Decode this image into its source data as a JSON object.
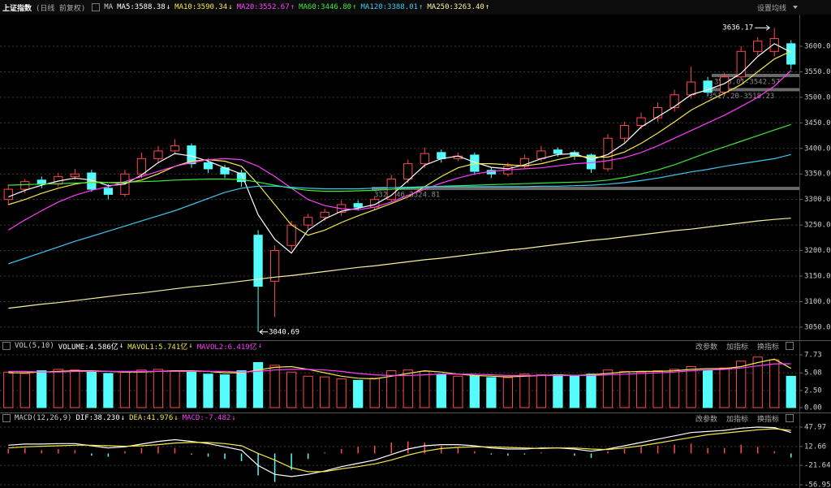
{
  "header": {
    "title": "上证指数",
    "period": "(日线 前复权)",
    "ma_title": "MA",
    "settings": "设置均线"
  },
  "chart_data": [
    {
      "type": "candlestick",
      "open": [
        3300,
        3320,
        3338,
        3330,
        3345,
        3352,
        3322,
        3310,
        3350,
        3380,
        3395,
        3405,
        3372,
        3362,
        3352,
        3230,
        3140,
        3210,
        3250,
        3265,
        3275,
        3292,
        3285,
        3300,
        3340,
        3370,
        3392,
        3380,
        3387,
        3357,
        3350,
        3365,
        3380,
        3397,
        3392,
        3387,
        3360,
        3420,
        3445,
        3460,
        3480,
        3505,
        3532,
        3510,
        3540,
        3590,
        3590,
        3605
      ],
      "high": [
        3330,
        3340,
        3345,
        3352,
        3360,
        3358,
        3330,
        3358,
        3392,
        3405,
        3418,
        3410,
        3380,
        3368,
        3358,
        3240,
        3210,
        3258,
        3272,
        3282,
        3298,
        3298,
        3306,
        3348,
        3378,
        3402,
        3398,
        3392,
        3392,
        3362,
        3372,
        3388,
        3405,
        3402,
        3396,
        3390,
        3428,
        3452,
        3470,
        3490,
        3515,
        3560,
        3540,
        3548,
        3600,
        3618,
        3636.17,
        3612
      ],
      "low": [
        3290,
        3312,
        3322,
        3325,
        3338,
        3315,
        3300,
        3305,
        3342,
        3372,
        3388,
        3362,
        3352,
        3342,
        3325,
        3040.69,
        3070,
        3200,
        3242,
        3258,
        3268,
        3278,
        3280,
        3296,
        3332,
        3362,
        3372,
        3375,
        3348,
        3342,
        3345,
        3360,
        3374,
        3384,
        3378,
        3352,
        3355,
        3412,
        3438,
        3452,
        3472,
        3498,
        3502,
        3505,
        3532,
        3582,
        3580,
        3555
      ],
      "close": [
        3320,
        3335,
        3330,
        3345,
        3350,
        3320,
        3310,
        3350,
        3380,
        3395,
        3405,
        3370,
        3360,
        3350,
        3335,
        3130,
        3200,
        3250,
        3265,
        3275,
        3290,
        3285,
        3300,
        3340,
        3370,
        3390,
        3380,
        3385,
        3355,
        3350,
        3365,
        3380,
        3395,
        3390,
        3385,
        3360,
        3420,
        3445,
        3460,
        3480,
        3505,
        3530,
        3510,
        3540,
        3590,
        3610,
        3615,
        3565
      ],
      "up_color": "#ff4a4a",
      "down_color": "#54fcfc",
      "moving_averages": [
        {
          "label": "MA5:3588.38",
          "arrow": "↓",
          "color": "#ffffff",
          "values": [
            3305,
            3318,
            3328,
            3336,
            3342,
            3338,
            3327,
            3330,
            3348,
            3372,
            3390,
            3385,
            3375,
            3362,
            3350,
            3270,
            3222,
            3195,
            3240,
            3262,
            3277,
            3283,
            3290,
            3308,
            3337,
            3367,
            3380,
            3385,
            3373,
            3363,
            3360,
            3368,
            3380,
            3388,
            3390,
            3378,
            3388,
            3410,
            3442,
            3462,
            3482,
            3505,
            3515,
            3527,
            3547,
            3580,
            3605,
            3588.38
          ]
        },
        {
          "label": "MA10:3590.34",
          "arrow": "↓",
          "color": "#f4e84a",
          "values": [
            3290,
            3300,
            3312,
            3322,
            3330,
            3335,
            3333,
            3332,
            3338,
            3350,
            3365,
            3375,
            3378,
            3375,
            3365,
            3330,
            3290,
            3250,
            3230,
            3240,
            3255,
            3268,
            3280,
            3292,
            3305,
            3325,
            3345,
            3362,
            3370,
            3370,
            3368,
            3366,
            3370,
            3378,
            3385,
            3383,
            3383,
            3393,
            3410,
            3430,
            3452,
            3475,
            3492,
            3508,
            3525,
            3550,
            3575,
            3590.34
          ]
        },
        {
          "label": "MA20:3552.67",
          "arrow": "↑",
          "color": "#ff3cff",
          "values": [
            3240,
            3260,
            3278,
            3295,
            3308,
            3318,
            3325,
            3335,
            3345,
            3355,
            3365,
            3372,
            3378,
            3380,
            3378,
            3365,
            3345,
            3322,
            3300,
            3288,
            3282,
            3280,
            3285,
            3295,
            3308,
            3320,
            3332,
            3342,
            3350,
            3355,
            3358,
            3360,
            3362,
            3366,
            3370,
            3372,
            3376,
            3382,
            3392,
            3405,
            3420,
            3435,
            3450,
            3465,
            3482,
            3500,
            3522,
            3552.67
          ]
        },
        {
          "label": "MA60:3446.80",
          "arrow": "↑",
          "color": "#3ce83c",
          "values": [
            3328,
            3329,
            3330,
            3331,
            3332,
            3333,
            3333,
            3334,
            3335,
            3336,
            3338,
            3339,
            3340,
            3340,
            3339,
            3334,
            3328,
            3322,
            3318,
            3316,
            3316,
            3317,
            3318,
            3320,
            3322,
            3324,
            3326,
            3327,
            3328,
            3329,
            3330,
            3331,
            3332,
            3333,
            3334,
            3335,
            3338,
            3343,
            3350,
            3358,
            3368,
            3380,
            3392,
            3403,
            3414,
            3425,
            3436,
            3446.8
          ]
        },
        {
          "label": "MA120:3388.01",
          "arrow": "↑",
          "color": "#3cc8f0",
          "values": [
            3174,
            3185,
            3196,
            3207,
            3218,
            3228,
            3238,
            3248,
            3258,
            3268,
            3278,
            3290,
            3302,
            3314,
            3322,
            3326,
            3326,
            3324,
            3322,
            3321,
            3321,
            3321,
            3322,
            3323,
            3324,
            3325,
            3325,
            3325,
            3325,
            3325,
            3325,
            3325,
            3326,
            3326,
            3327,
            3328,
            3330,
            3333,
            3337,
            3342,
            3348,
            3354,
            3359,
            3365,
            3370,
            3375,
            3380,
            3388.01
          ]
        },
        {
          "label": "MA250:3263.40",
          "arrow": "↑",
          "color": "#f8f0a0",
          "values": [
            3087,
            3091,
            3095,
            3098,
            3102,
            3106,
            3110,
            3114,
            3117,
            3121,
            3125,
            3129,
            3132,
            3136,
            3140,
            3144,
            3148,
            3151,
            3155,
            3159,
            3163,
            3167,
            3170,
            3174,
            3178,
            3182,
            3185,
            3189,
            3193,
            3197,
            3201,
            3204,
            3208,
            3212,
            3216,
            3220,
            3223,
            3227,
            3231,
            3235,
            3239,
            3242,
            3246,
            3250,
            3254,
            3258,
            3261,
            3263.4
          ]
        }
      ],
      "annotations": [
        {
          "label": "3636.17",
          "value": 3636.17
        },
        {
          "label": "3040.69",
          "value": 3040.69
        }
      ],
      "gaps": [
        {
          "label": "3546.01-3542.57",
          "low": 3542.57,
          "high": 3546.01
        },
        {
          "label": "3517.20-3518.23",
          "low": 3517.2,
          "high": 3518.23
        },
        {
          "label": "3324.46-3324.81",
          "low": 3324.46,
          "high": 3324.81
        }
      ],
      "ylim": [
        3026,
        3662
      ],
      "yticks": [
        {
          "value": 3050,
          "label": "3050.00"
        },
        {
          "value": 3100,
          "label": "3100.00"
        },
        {
          "value": 3150,
          "label": "3150.00"
        },
        {
          "value": 3200,
          "label": "3200.00"
        },
        {
          "value": 3250,
          "label": "3250.00"
        },
        {
          "value": 3300,
          "label": "3300.00"
        },
        {
          "value": 3350,
          "label": "3350.00"
        },
        {
          "value": 3400,
          "label": "3400.00"
        },
        {
          "value": 3450,
          "label": "3450.00"
        },
        {
          "value": 3500,
          "label": "3500.00"
        },
        {
          "value": 3550,
          "label": "3550.00"
        },
        {
          "value": 3600,
          "label": "3600.00"
        }
      ],
      "grid": true
    },
    {
      "type": "volume",
      "title": "VOL(5,10)",
      "label": "VOLUME:4.586亿",
      "arrow": "↓",
      "color": "#ffffff",
      "values": [
        5.2,
        5.0,
        5.4,
        5.6,
        5.5,
        5.3,
        5.0,
        5.2,
        5.5,
        5.6,
        5.4,
        5.3,
        4.9,
        4.8,
        5.4,
        6.6,
        6.2,
        5.2,
        4.6,
        4.5,
        4.2,
        4.0,
        4.3,
        5.4,
        5.5,
        5.3,
        4.9,
        4.6,
        4.7,
        4.4,
        4.4,
        4.9,
        4.8,
        4.8,
        4.6,
        4.9,
        5.5,
        5.3,
        5.2,
        5.4,
        5.6,
        6.0,
        5.4,
        5.8,
        6.8,
        7.4,
        7.0,
        4.586
      ],
      "series": [
        {
          "label": "MAVOL1:5.741亿",
          "arrow": "↓",
          "color": "#f4e84a",
          "values": [
            5.1,
            5.1,
            5.2,
            5.3,
            5.4,
            5.4,
            5.3,
            5.2,
            5.2,
            5.3,
            5.4,
            5.4,
            5.3,
            5.1,
            5.1,
            5.5,
            5.9,
            6.0,
            5.6,
            5.1,
            4.6,
            4.3,
            4.2,
            4.6,
            5.0,
            5.4,
            5.2,
            4.9,
            4.7,
            4.6,
            4.5,
            4.6,
            4.7,
            4.8,
            4.7,
            4.8,
            5.0,
            5.2,
            5.3,
            5.3,
            5.4,
            5.6,
            5.7,
            5.7,
            6.0,
            6.6,
            7.1,
            5.741
          ]
        },
        {
          "label": "MAVOL2:6.419亿",
          "arrow": "↓",
          "color": "#ff3cff",
          "values": [
            5.3,
            5.3,
            5.2,
            5.2,
            5.3,
            5.3,
            5.3,
            5.3,
            5.3,
            5.3,
            5.3,
            5.3,
            5.3,
            5.3,
            5.2,
            5.3,
            5.5,
            5.6,
            5.6,
            5.5,
            5.3,
            5.0,
            4.8,
            4.7,
            4.7,
            4.8,
            4.9,
            4.9,
            4.9,
            4.8,
            4.7,
            4.7,
            4.7,
            4.7,
            4.7,
            4.7,
            4.8,
            4.9,
            5.0,
            5.1,
            5.2,
            5.4,
            5.5,
            5.6,
            5.8,
            6.1,
            6.4,
            6.419
          ]
        }
      ],
      "ylim": [
        -0.36,
        8.32
      ],
      "yticks": [
        {
          "value": 0,
          "label": "0.00"
        },
        {
          "value": 2.5,
          "label": "2.50"
        },
        5.08,
        7.73
      ],
      "grid": true,
      "tools": [
        "改参数",
        "加指标",
        "换指标"
      ]
    },
    {
      "type": "macd",
      "title": "MACD(12,26,9)",
      "series": [
        {
          "label": "DIF:38.230",
          "arrow": "↓",
          "color": "#ffffff",
          "values": [
            15,
            17,
            17,
            18,
            18,
            14,
            10,
            12,
            17,
            22,
            25,
            22,
            18,
            12,
            6,
            -22,
            -38,
            -42,
            -38,
            -32,
            -24,
            -18,
            -12,
            -2,
            8,
            14,
            16,
            16,
            14,
            10,
            8,
            8,
            10,
            10,
            8,
            4,
            8,
            14,
            20,
            26,
            32,
            38,
            40,
            42,
            46,
            48,
            47,
            38.23
          ]
        },
        {
          "label": "DEA:41.976",
          "arrow": "↓",
          "color": "#f4e84a",
          "values": [
            10,
            12,
            13,
            14,
            15,
            15,
            14,
            13,
            14,
            16,
            19,
            20,
            20,
            18,
            14,
            0,
            -12,
            -26,
            -33,
            -33,
            -28,
            -24,
            -19,
            -12,
            -3,
            4,
            9,
            11,
            12,
            12,
            11,
            10,
            9,
            10,
            10,
            8,
            7,
            10,
            14,
            19,
            24,
            29,
            34,
            37,
            40,
            43,
            45,
            41.976
          ]
        }
      ],
      "label": "MACD:-7.482",
      "arrow": "↓",
      "color": "#ff3cff",
      "values": [
        8,
        10,
        6,
        8,
        6,
        -4,
        -6,
        4,
        10,
        12,
        10,
        -2,
        -6,
        -10,
        -14,
        -40,
        -52,
        -30,
        -10,
        2,
        8,
        12,
        14,
        20,
        22,
        20,
        14,
        10,
        4,
        -2,
        -4,
        -2,
        2,
        0,
        -4,
        -8,
        4,
        8,
        12,
        14,
        16,
        18,
        10,
        10,
        16,
        12,
        4,
        -7.482
      ],
      "ylim": [
        -61.4,
        56.8
      ],
      "yticks": [
        -56.95,
        -21.64,
        12.66,
        47.97
      ],
      "grid": true,
      "tools": [
        "改参数",
        "加指标",
        "换指标"
      ]
    }
  ]
}
